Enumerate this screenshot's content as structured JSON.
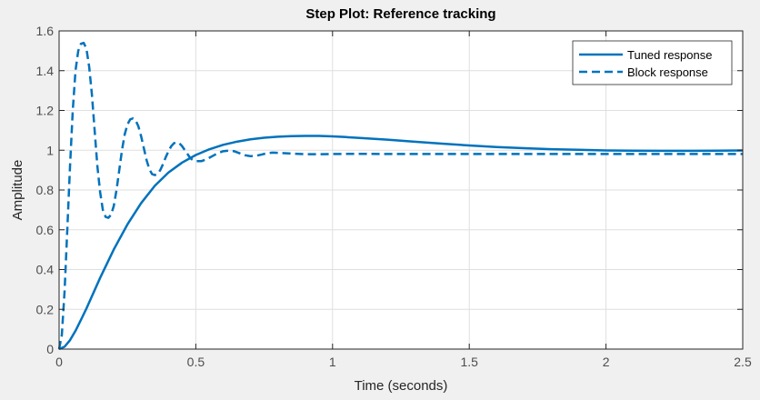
{
  "chart_data": {
    "type": "line",
    "title": "Step Plot: Reference tracking",
    "xlabel": "Time (seconds)",
    "ylabel": "Amplitude",
    "xlim": [
      0,
      2.5
    ],
    "ylim": [
      0,
      1.6
    ],
    "xticks": [
      0,
      0.5,
      1,
      1.5,
      2,
      2.5
    ],
    "xtick_labels": [
      "0",
      "0.5",
      "1",
      "1.5",
      "2",
      "2.5"
    ],
    "yticks": [
      0,
      0.2,
      0.4,
      0.6,
      0.8,
      1,
      1.2,
      1.4,
      1.6
    ],
    "ytick_labels": [
      "0",
      "0.2",
      "0.4",
      "0.6",
      "0.8",
      "1",
      "1.2",
      "1.4",
      "1.6"
    ],
    "grid": true,
    "legend_position": "top-right",
    "series": [
      {
        "name": "Tuned response",
        "style": "solid",
        "color": "#0072bd",
        "x": [
          0,
          0.02,
          0.04,
          0.06,
          0.08,
          0.1,
          0.15,
          0.2,
          0.25,
          0.3,
          0.35,
          0.4,
          0.45,
          0.5,
          0.55,
          0.6,
          0.65,
          0.7,
          0.75,
          0.8,
          0.85,
          0.9,
          0.95,
          1.0,
          1.05,
          1.1,
          1.2,
          1.3,
          1.4,
          1.5,
          1.6,
          1.7,
          1.8,
          1.9,
          2.0,
          2.1,
          2.2,
          2.3,
          2.4,
          2.5
        ],
        "y": [
          0,
          0.012,
          0.045,
          0.092,
          0.147,
          0.204,
          0.358,
          0.501,
          0.627,
          0.734,
          0.821,
          0.888,
          0.938,
          0.976,
          1.005,
          1.027,
          1.043,
          1.055,
          1.063,
          1.068,
          1.071,
          1.072,
          1.072,
          1.07,
          1.066,
          1.062,
          1.053,
          1.043,
          1.033,
          1.024,
          1.016,
          1.01,
          1.005,
          1.002,
          0.999,
          0.998,
          0.997,
          0.997,
          0.998,
          0.999
        ]
      },
      {
        "name": "Block response",
        "style": "dashed",
        "color": "#0072bd",
        "x": [
          0,
          0.01,
          0.02,
          0.03,
          0.04,
          0.05,
          0.06,
          0.07,
          0.08,
          0.09,
          0.1,
          0.11,
          0.12,
          0.13,
          0.14,
          0.15,
          0.16,
          0.17,
          0.18,
          0.19,
          0.2,
          0.21,
          0.22,
          0.23,
          0.24,
          0.25,
          0.26,
          0.27,
          0.28,
          0.29,
          0.3,
          0.31,
          0.32,
          0.33,
          0.34,
          0.35,
          0.36,
          0.37,
          0.38,
          0.39,
          0.4,
          0.41,
          0.42,
          0.43,
          0.44,
          0.45,
          0.46,
          0.47,
          0.48,
          0.49,
          0.5,
          0.52,
          0.54,
          0.56,
          0.58,
          0.6,
          0.62,
          0.64,
          0.66,
          0.68,
          0.7,
          0.72,
          0.74,
          0.76,
          0.78,
          0.8,
          0.85,
          0.9,
          0.95,
          1.0,
          1.1,
          1.2,
          1.4,
          1.6,
          1.8,
          2.0,
          2.2,
          2.5
        ],
        "y": [
          0,
          0.07,
          0.29,
          0.6,
          0.92,
          1.2,
          1.4,
          1.5,
          1.535,
          1.54,
          1.51,
          1.42,
          1.28,
          1.1,
          0.92,
          0.79,
          0.7,
          0.665,
          0.66,
          0.675,
          0.72,
          0.8,
          0.9,
          1.0,
          1.08,
          1.13,
          1.155,
          1.16,
          1.15,
          1.12,
          1.07,
          1.01,
          0.95,
          0.905,
          0.88,
          0.875,
          0.88,
          0.9,
          0.93,
          0.965,
          0.995,
          1.02,
          1.035,
          1.04,
          1.035,
          1.02,
          1.0,
          0.98,
          0.96,
          0.95,
          0.945,
          0.945,
          0.955,
          0.97,
          0.985,
          0.995,
          0.998,
          0.995,
          0.985,
          0.975,
          0.97,
          0.972,
          0.978,
          0.985,
          0.988,
          0.987,
          0.983,
          0.98,
          0.98,
          0.981,
          0.982,
          0.981,
          0.981,
          0.981,
          0.981,
          0.981,
          0.981,
          0.981
        ]
      }
    ]
  }
}
